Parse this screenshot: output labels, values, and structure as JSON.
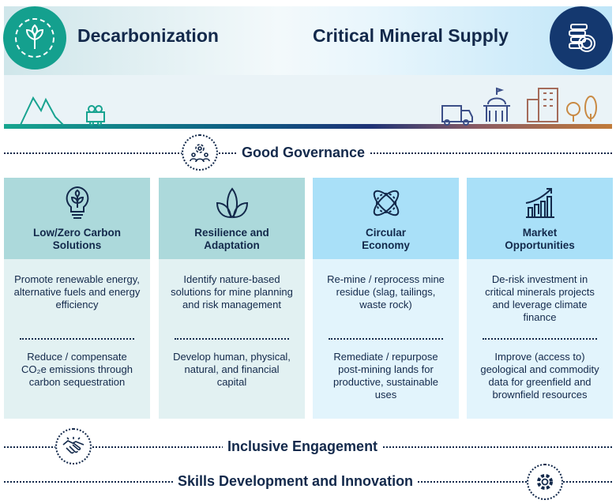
{
  "header": {
    "left_title": "Decarbonization",
    "right_title": "Critical Mineral Supply"
  },
  "bands": {
    "governance": "Good Governance",
    "engagement": "Inclusive Engagement",
    "skills": "Skills Development and Innovation"
  },
  "columns": [
    {
      "title_line1": "Low/Zero Carbon",
      "title_line2": "Solutions",
      "icon": "lightbulb-plant-icon",
      "header_color": "#acd9db",
      "body_color": "#e2f1f2",
      "item1": "Promote renewable energy, alternative fuels and energy efficiency",
      "item2": "Reduce / compensate CO₂e emissions through carbon sequestration"
    },
    {
      "title_line1": "Resilience and",
      "title_line2": "Adaptation",
      "icon": "leaves-icon",
      "header_color": "#acd9db",
      "body_color": "#e2f1f2",
      "item1": "Identify nature-based solutions for mine planning and risk management",
      "item2": "Develop human, physical, natural, and financial capital"
    },
    {
      "title_line1": "Circular",
      "title_line2": "Economy",
      "icon": "circular-orbit-icon",
      "header_color": "#a9e0f8",
      "body_color": "#e2f4fc",
      "item1": "Re-mine / reprocess mine residue (slag, tailings, waste rock)",
      "item2": "Remediate / repurpose post-mining lands for productive, sustainable uses"
    },
    {
      "title_line1": "Market",
      "title_line2": "Opportunities",
      "icon": "growth-chart-icon",
      "header_color": "#a9e0f8",
      "body_color": "#e2f4fc",
      "item1": "De-risk investment in critical minerals projects and leverage climate finance",
      "item2": "Improve (access to) geological and commodity data for greenfield and brownfield resources"
    }
  ]
}
